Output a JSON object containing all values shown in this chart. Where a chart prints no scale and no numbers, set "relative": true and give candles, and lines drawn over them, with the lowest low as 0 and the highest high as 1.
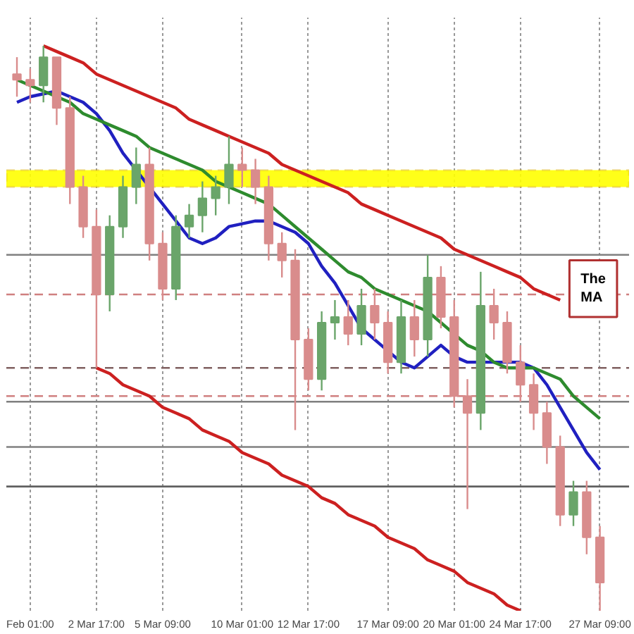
{
  "chart_data": {
    "type": "candlestick",
    "relative": true,
    "categories": [
      null,
      "Feb 01:00",
      null,
      null,
      null,
      null,
      "2 Mar 17:00",
      null,
      null,
      null,
      null,
      "5 Mar 09:00",
      null,
      null,
      null,
      null,
      null,
      "10 Mar 01:00",
      null,
      null,
      null,
      null,
      "12 Mar 17:00",
      null,
      null,
      null,
      null,
      null,
      "17 Mar 09:00",
      null,
      null,
      null,
      null,
      "20 Mar 01:00",
      null,
      null,
      null,
      null,
      "24 Mar 17:00",
      null,
      null,
      null,
      null,
      null,
      "27 Mar 09:00"
    ],
    "ohlc": [
      [
        0.95,
        0.98,
        0.91,
        0.94
      ],
      [
        0.94,
        0.96,
        0.9,
        0.93
      ],
      [
        0.93,
        1.0,
        0.9,
        0.98
      ],
      [
        0.98,
        0.98,
        0.86,
        0.89
      ],
      [
        0.89,
        0.91,
        0.72,
        0.75
      ],
      [
        0.75,
        0.77,
        0.66,
        0.68
      ],
      [
        0.68,
        0.71,
        0.43,
        0.56
      ],
      [
        0.56,
        0.7,
        0.53,
        0.68
      ],
      [
        0.68,
        0.77,
        0.66,
        0.75
      ],
      [
        0.75,
        0.82,
        0.72,
        0.79
      ],
      [
        0.79,
        0.82,
        0.62,
        0.65
      ],
      [
        0.65,
        0.67,
        0.55,
        0.57
      ],
      [
        0.57,
        0.7,
        0.55,
        0.68
      ],
      [
        0.68,
        0.72,
        0.66,
        0.7
      ],
      [
        0.7,
        0.76,
        0.67,
        0.73
      ],
      [
        0.73,
        0.77,
        0.7,
        0.75
      ],
      [
        0.75,
        0.84,
        0.72,
        0.79
      ],
      [
        0.79,
        0.82,
        0.75,
        0.78
      ],
      [
        0.78,
        0.8,
        0.72,
        0.75
      ],
      [
        0.75,
        0.77,
        0.62,
        0.65
      ],
      [
        0.65,
        0.67,
        0.59,
        0.62
      ],
      [
        0.62,
        0.64,
        0.32,
        0.48
      ],
      [
        0.48,
        0.5,
        0.39,
        0.41
      ],
      [
        0.41,
        0.53,
        0.39,
        0.51
      ],
      [
        0.51,
        0.55,
        0.48,
        0.52
      ],
      [
        0.52,
        0.55,
        0.47,
        0.49
      ],
      [
        0.49,
        0.57,
        0.47,
        0.54
      ],
      [
        0.54,
        0.57,
        0.48,
        0.51
      ],
      [
        0.51,
        0.53,
        0.42,
        0.44
      ],
      [
        0.44,
        0.55,
        0.42,
        0.52
      ],
      [
        0.52,
        0.55,
        0.45,
        0.48
      ],
      [
        0.48,
        0.63,
        0.45,
        0.59
      ],
      [
        0.59,
        0.61,
        0.5,
        0.52
      ],
      [
        0.52,
        0.55,
        0.36,
        0.38
      ],
      [
        0.38,
        0.41,
        0.18,
        0.35
      ],
      [
        0.35,
        0.6,
        0.32,
        0.54
      ],
      [
        0.54,
        0.57,
        0.48,
        0.51
      ],
      [
        0.51,
        0.53,
        0.42,
        0.44
      ],
      [
        0.44,
        0.47,
        0.37,
        0.4
      ],
      [
        0.4,
        0.42,
        0.32,
        0.35
      ],
      [
        0.35,
        0.37,
        0.26,
        0.29
      ],
      [
        0.29,
        0.31,
        0.15,
        0.17
      ],
      [
        0.17,
        0.23,
        0.15,
        0.21
      ],
      [
        0.21,
        0.23,
        0.1,
        0.13
      ],
      [
        0.13,
        0.15,
        0.0,
        0.05
      ]
    ],
    "colors": [
      "#d98c8c",
      "#d98c8c",
      "#6aa56a",
      "#d98c8c",
      "#d98c8c",
      "#d98c8c",
      "#d98c8c",
      "#6aa56a",
      "#6aa56a",
      "#6aa56a",
      "#d98c8c",
      "#d98c8c",
      "#6aa56a",
      "#6aa56a",
      "#6aa56a",
      "#6aa56a",
      "#6aa56a",
      "#d98c8c",
      "#d98c8c",
      "#d98c8c",
      "#d98c8c",
      "#d98c8c",
      "#d98c8c",
      "#6aa56a",
      "#6aa56a",
      "#d98c8c",
      "#6aa56a",
      "#d98c8c",
      "#d98c8c",
      "#6aa56a",
      "#d98c8c",
      "#6aa56a",
      "#d98c8c",
      "#d98c8c",
      "#d98c8c",
      "#6aa56a",
      "#d98c8c",
      "#d98c8c",
      "#d98c8c",
      "#d98c8c",
      "#d98c8c",
      "#d98c8c",
      "#6aa56a",
      "#d98c8c",
      "#d98c8c"
    ],
    "series": [
      {
        "type": "line",
        "color": "#2020c0",
        "values": [
          0.9,
          0.91,
          0.915,
          0.92,
          0.91,
          0.9,
          0.88,
          0.85,
          0.81,
          0.78,
          0.75,
          0.72,
          0.69,
          0.66,
          0.65,
          0.66,
          0.68,
          0.685,
          0.69,
          0.69,
          0.68,
          0.67,
          0.65,
          0.61,
          0.58,
          0.54,
          0.5,
          0.48,
          0.46,
          0.44,
          0.43,
          0.45,
          0.47,
          0.45,
          0.44,
          0.44,
          0.44,
          0.44,
          0.44,
          0.43,
          0.4,
          0.36,
          0.32,
          0.28,
          0.25
        ]
      },
      {
        "type": "line",
        "color": "#2e8b2e",
        "values": [
          0.94,
          0.93,
          0.92,
          0.91,
          0.9,
          0.88,
          0.87,
          0.86,
          0.85,
          0.84,
          0.82,
          0.81,
          0.8,
          0.79,
          0.78,
          0.76,
          0.75,
          0.74,
          0.73,
          0.72,
          0.7,
          0.68,
          0.66,
          0.64,
          0.62,
          0.6,
          0.59,
          0.57,
          0.56,
          0.55,
          0.54,
          0.53,
          0.51,
          0.49,
          0.47,
          0.46,
          0.44,
          0.43,
          0.43,
          0.43,
          0.42,
          0.41,
          0.38,
          0.36,
          0.34
        ]
      },
      {
        "type": "line",
        "color": "#cc2020",
        "values": [
          null,
          null,
          1.0,
          0.99,
          0.98,
          0.97,
          0.95,
          0.94,
          0.93,
          0.92,
          0.91,
          0.9,
          0.89,
          0.87,
          0.86,
          0.85,
          0.84,
          0.83,
          0.82,
          0.81,
          0.79,
          0.78,
          0.77,
          0.76,
          0.75,
          0.74,
          0.72,
          0.71,
          0.7,
          0.69,
          0.68,
          0.67,
          0.66,
          0.64,
          0.63,
          0.62,
          0.61,
          0.6,
          0.59,
          0.57,
          0.56,
          0.55,
          null,
          null,
          null
        ]
      },
      {
        "type": "line",
        "color": "#cc2020",
        "values": [
          null,
          null,
          null,
          null,
          null,
          null,
          0.43,
          0.42,
          0.4,
          0.39,
          0.38,
          0.36,
          0.35,
          0.34,
          0.32,
          0.31,
          0.3,
          0.28,
          0.27,
          0.26,
          0.24,
          0.23,
          0.22,
          0.2,
          0.19,
          0.17,
          0.16,
          0.15,
          0.13,
          0.12,
          0.11,
          0.09,
          0.08,
          0.07,
          0.05,
          0.04,
          0.03,
          0.01,
          0.0,
          null,
          null,
          null,
          null,
          null,
          null
        ]
      }
    ],
    "bands": [
      {
        "axis": "y",
        "from": 0.75,
        "to": 0.78,
        "color": "#ffff00"
      }
    ],
    "ref_lines": [
      {
        "axis": "y",
        "value": 0.63,
        "color": "#808080",
        "line_style": "solid"
      },
      {
        "axis": "y",
        "value": 0.56,
        "color": "#d08080",
        "line_style": "dashed"
      },
      {
        "axis": "y",
        "value": 0.43,
        "color": "#806060",
        "line_style": "dashed"
      },
      {
        "axis": "y",
        "value": 0.38,
        "color": "#d08080",
        "line_style": "dashed"
      },
      {
        "axis": "y",
        "value": 0.37,
        "color": "#808080",
        "line_style": "solid"
      },
      {
        "axis": "y",
        "value": 0.29,
        "color": "#808080",
        "line_style": "solid"
      },
      {
        "axis": "y",
        "value": 0.22,
        "color": "#606060",
        "line_style": "solid"
      }
    ],
    "annotations": [
      "The",
      "MA"
    ],
    "grid": "x",
    "tick_labels": "x"
  }
}
